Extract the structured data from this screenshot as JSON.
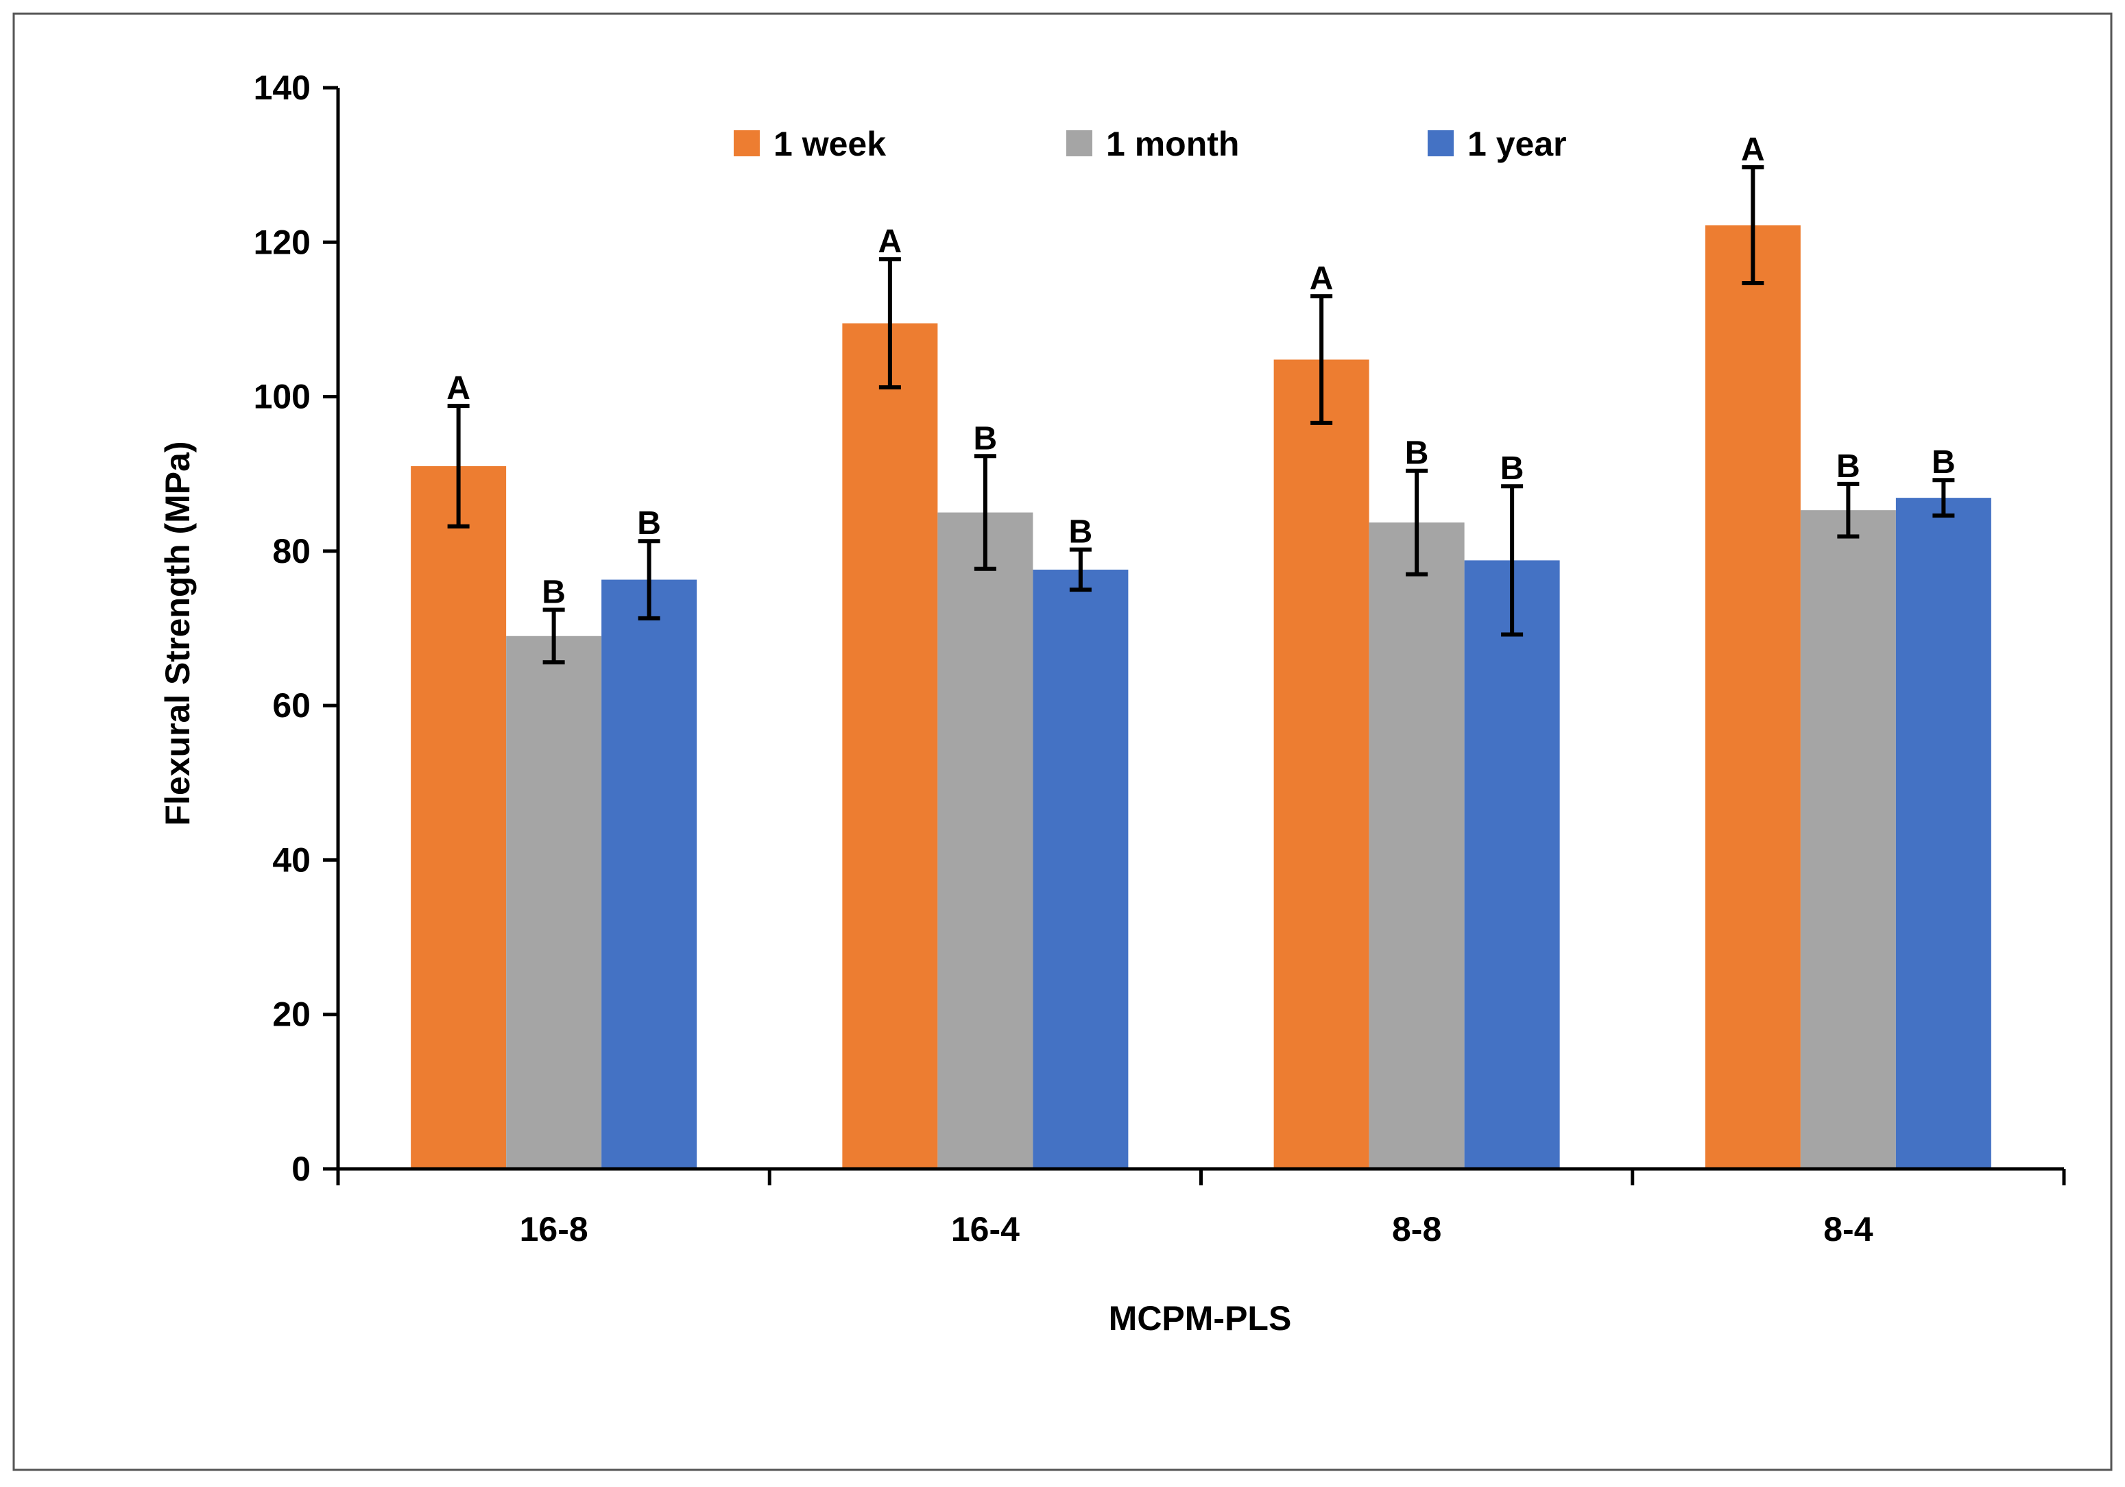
{
  "chart_data": {
    "type": "bar",
    "title": "",
    "xlabel": "MCPM-PLS",
    "ylabel": "Flexural Strength (MPa)",
    "ylim": [
      0,
      140
    ],
    "yticks": [
      0,
      20,
      40,
      60,
      80,
      100,
      120,
      140
    ],
    "categories": [
      "16-8",
      "16-4",
      "8-8",
      "8-4"
    ],
    "grid": false,
    "legend_position": "top",
    "series": [
      {
        "name": "1 week",
        "color": "#ED7D31",
        "values": [
          91,
          109.5,
          104.8,
          122.2
        ],
        "error": [
          7.8,
          8.3,
          8.2,
          7.5
        ],
        "labels": [
          "A",
          "A",
          "A",
          "A"
        ]
      },
      {
        "name": "1 month",
        "color": "#A5A5A5",
        "values": [
          69,
          85,
          83.7,
          85.3
        ],
        "error": [
          3.4,
          7.3,
          6.7,
          3.4
        ],
        "labels": [
          "B",
          "B",
          "B",
          "B"
        ]
      },
      {
        "name": "1 year",
        "color": "#4472C4",
        "values": [
          76.3,
          77.6,
          78.8,
          86.9
        ],
        "error": [
          5.0,
          2.6,
          9.6,
          2.3
        ],
        "labels": [
          "B",
          "B",
          "B",
          "B"
        ]
      }
    ]
  }
}
